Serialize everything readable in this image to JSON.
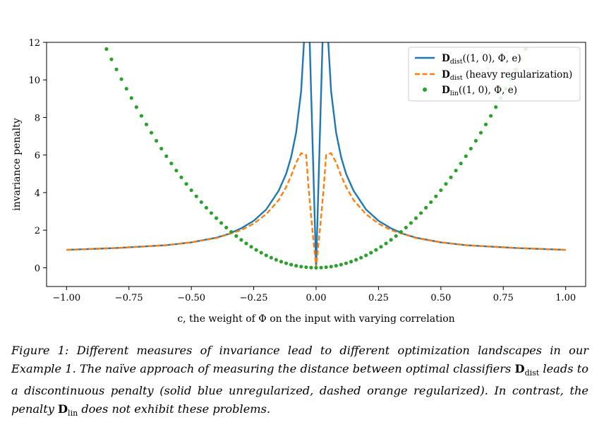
{
  "chart_data": {
    "type": "line",
    "xlabel": "c, the weight of Φ on the input with varying correlation",
    "ylabel": "invariance penalty",
    "xlim": [
      -1.08,
      1.08
    ],
    "ylim": [
      -1.0,
      12.0
    ],
    "xticks": [
      -1.0,
      -0.75,
      -0.5,
      -0.25,
      0.0,
      0.25,
      0.5,
      0.75,
      1.0
    ],
    "xtick_labels": [
      "−1.00",
      "−0.75",
      "−0.50",
      "−0.25",
      "0.00",
      "0.25",
      "0.50",
      "0.75",
      "1.00"
    ],
    "yticks": [
      0,
      2,
      4,
      6,
      8,
      10,
      12
    ],
    "ytick_labels": [
      "0",
      "2",
      "4",
      "6",
      "8",
      "10",
      "12"
    ],
    "legend_position": "top-right",
    "series": [
      {
        "name": "D_dist((1,0),Φ,e)",
        "legend_main": "D",
        "legend_sub": "dist",
        "legend_rest": "((1, 0), Φ, e)",
        "style": "solid",
        "color": "#1f77b4",
        "x": [
          -1.0,
          -0.8,
          -0.6,
          -0.5,
          -0.4,
          -0.35,
          -0.3,
          -0.25,
          -0.2,
          -0.15,
          -0.12,
          -0.1,
          -0.08,
          -0.06,
          -0.04,
          -0.03,
          -0.0,
          0.0,
          0.03,
          0.04,
          0.06,
          0.08,
          0.1,
          0.12,
          0.15,
          0.2,
          0.25,
          0.3,
          0.35,
          0.4,
          0.5,
          0.6,
          0.8,
          1.0
        ],
        "y": [
          0.95,
          1.05,
          1.2,
          1.35,
          1.6,
          1.8,
          2.1,
          2.5,
          3.1,
          4.1,
          5.0,
          5.9,
          7.2,
          9.4,
          14,
          14,
          0.02,
          0.02,
          14,
          14,
          9.4,
          7.2,
          5.9,
          5.0,
          4.1,
          3.1,
          2.5,
          2.1,
          1.8,
          1.6,
          1.35,
          1.2,
          1.05,
          0.95
        ]
      },
      {
        "name": "D_dist (heavy regularization)",
        "legend_main": "D",
        "legend_sub": "dist",
        "legend_rest": " (heavy regularization)",
        "style": "dashed",
        "color": "#ff7f0e",
        "x": [
          -1.0,
          -0.8,
          -0.6,
          -0.5,
          -0.4,
          -0.3,
          -0.25,
          -0.2,
          -0.15,
          -0.12,
          -0.1,
          -0.08,
          -0.06,
          -0.04,
          -0.03,
          -0.015,
          0.0,
          0.015,
          0.03,
          0.04,
          0.06,
          0.08,
          0.1,
          0.12,
          0.15,
          0.2,
          0.25,
          0.3,
          0.4,
          0.5,
          0.6,
          0.8,
          1.0
        ],
        "y": [
          0.95,
          1.05,
          1.2,
          1.35,
          1.58,
          2.0,
          2.35,
          2.85,
          3.6,
          4.3,
          4.9,
          5.6,
          6.1,
          6.0,
          4.2,
          2.0,
          0.02,
          2.0,
          4.2,
          6.0,
          6.1,
          5.6,
          4.9,
          4.3,
          3.6,
          2.85,
          2.35,
          2.0,
          1.58,
          1.35,
          1.2,
          1.05,
          0.95
        ]
      },
      {
        "name": "D_lin((1,0),Φ,e)",
        "legend_main": "D",
        "legend_sub": "lin",
        "legend_rest": "((1, 0), Φ, e)",
        "style": "dotted",
        "color": "#2ca02c",
        "x_start": -1.0,
        "x_end": 1.0,
        "x_step": 0.02,
        "function": "y = 16.5 * c^2",
        "y_visible_max": 12
      }
    ]
  },
  "caption": {
    "label": "Figure 1:",
    "text": "Different measures of invariance lead to different optimization landscapes in our Example 1. The naïve approach of measuring the distance between optimal classifiers 𝔻dist leads to a discontinuous penalty (solid blue unregularized, dashed orange regularized). In contrast, the penalty 𝔻lin does not exhibit these problems.",
    "part1": "Different measures of invariance lead to different optimization landscapes in our Example 1. The naïve approach of measuring the distance between optimal classifiers ",
    "sym1_main": "D",
    "sym1_sub": "dist",
    "part2": " leads to a discontinuous penalty (solid blue unregularized, dashed orange regularized). In contrast, the penalty ",
    "sym2_main": "D",
    "sym2_sub": "lin",
    "part3": " does not exhibit these problems."
  }
}
